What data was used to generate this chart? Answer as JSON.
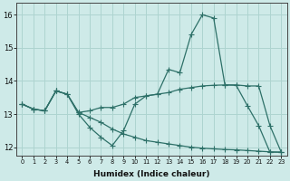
{
  "xlabel": "Humidex (Indice chaleur)",
  "background_color": "#ceeae8",
  "grid_color": "#add4d0",
  "line_color": "#2d7068",
  "xlim": [
    -0.5,
    23.5
  ],
  "ylim": [
    11.75,
    16.35
  ],
  "yticks": [
    12,
    13,
    14,
    15,
    16
  ],
  "xticks": [
    0,
    1,
    2,
    3,
    4,
    5,
    6,
    7,
    8,
    9,
    10,
    11,
    12,
    13,
    14,
    15,
    16,
    17,
    18,
    19,
    20,
    21,
    22,
    23
  ],
  "line1_x": [
    0,
    1,
    2,
    3,
    4,
    5,
    6,
    7,
    8,
    9,
    10,
    11,
    12,
    13,
    14,
    15,
    16,
    17,
    18,
    19,
    20,
    21,
    22,
    23
  ],
  "line1_y": [
    13.3,
    13.15,
    13.1,
    13.7,
    13.6,
    13.05,
    12.9,
    12.75,
    12.55,
    12.4,
    12.3,
    12.2,
    12.15,
    12.1,
    12.05,
    12.0,
    11.97,
    11.95,
    11.93,
    11.92,
    11.9,
    11.88,
    11.86,
    11.85
  ],
  "line2_x": [
    0,
    1,
    2,
    3,
    4,
    5,
    6,
    7,
    8,
    9,
    10,
    11,
    12,
    13,
    14,
    15,
    16,
    17,
    18,
    19,
    20,
    21,
    22,
    23
  ],
  "line2_y": [
    13.3,
    13.15,
    13.1,
    13.7,
    13.6,
    13.05,
    13.1,
    13.2,
    13.2,
    13.3,
    13.5,
    13.55,
    13.6,
    13.65,
    13.75,
    13.8,
    13.85,
    13.87,
    13.88,
    13.88,
    13.85,
    13.85,
    12.65,
    11.85
  ],
  "line3_x": [
    0,
    1,
    2,
    3,
    4,
    5,
    6,
    7,
    8,
    9,
    10,
    11,
    12,
    13,
    14,
    15,
    16,
    17,
    18,
    19,
    20,
    21,
    22,
    23
  ],
  "line3_y": [
    13.3,
    13.15,
    13.1,
    13.7,
    13.6,
    13.0,
    12.6,
    12.3,
    12.05,
    12.5,
    13.3,
    13.55,
    13.6,
    14.35,
    14.25,
    15.4,
    16.0,
    15.9,
    13.88,
    13.87,
    13.25,
    12.65,
    11.85,
    11.85
  ]
}
